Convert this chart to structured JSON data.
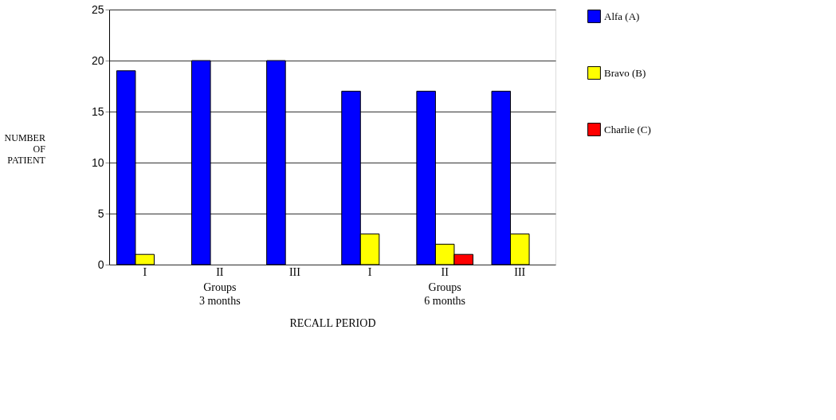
{
  "chart_data": {
    "type": "bar",
    "xlabel": "RECALL PERIOD",
    "ylabel": "NUMBER OF PATIENT",
    "categories": [
      "I",
      "II",
      "III",
      "I",
      "II",
      "III"
    ],
    "series": [
      {
        "name": "Alfa (A)",
        "color": "#0000ff",
        "values": [
          19,
          20,
          20,
          17,
          17,
          17
        ]
      },
      {
        "name": "Bravo (B)",
        "color": "#ffff00",
        "values": [
          1,
          0,
          0,
          3,
          2,
          3
        ]
      },
      {
        "name": "Charlie (C)",
        "color": "#ff0000",
        "values": [
          0,
          0,
          0,
          0,
          1,
          0
        ]
      }
    ],
    "annotations": [
      "Groups\n3 months",
      "Groups\n6 months"
    ],
    "ylim": [
      0,
      25
    ],
    "yticks": [
      0,
      5,
      10,
      15,
      20,
      25
    ],
    "grid": "y",
    "legend": "right"
  }
}
